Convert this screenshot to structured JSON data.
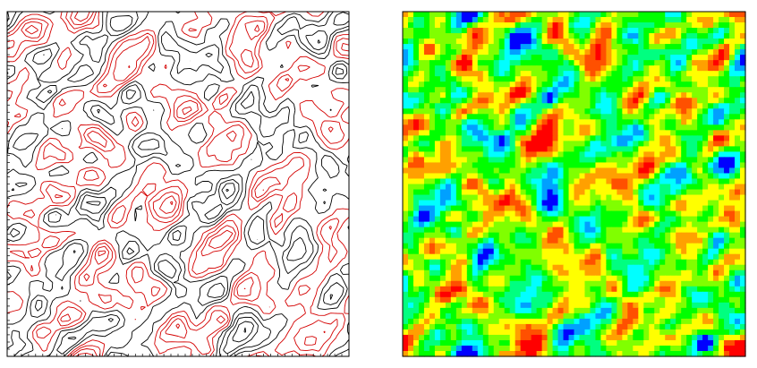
{
  "contour_plot": {
    "line_colors": {
      "positive": "#000000",
      "negative": "#d40000"
    },
    "frame_color": "#000000",
    "background": "#ffffff"
  },
  "heatmap": {
    "palette": [
      "#0000ff",
      "#00a0ff",
      "#00ffff",
      "#00ff80",
      "#00ff00",
      "#80ff00",
      "#ffff00",
      "#ffa000",
      "#ff5000",
      "#ff0000"
    ],
    "frame_color": "#000000",
    "grid_cells": 64
  }
}
